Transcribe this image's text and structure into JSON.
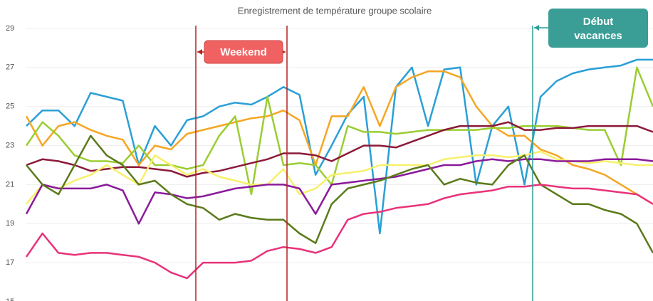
{
  "chart_data": {
    "type": "line",
    "title": "Enregistrement de température groupe scolaire",
    "annotations": {
      "weekend": "Weekend",
      "vacation": [
        "Début",
        "vacances"
      ]
    },
    "categories": [
      null,
      null,
      null,
      null,
      null,
      null,
      null,
      null,
      null,
      null,
      null,
      null,
      null,
      null,
      null,
      null,
      null,
      null,
      null,
      null,
      null,
      null,
      null,
      null,
      null,
      null,
      null,
      null,
      null,
      null,
      null,
      null,
      null,
      null,
      null,
      null,
      null,
      null,
      null,
      null
    ],
    "ylim": [
      15,
      29.3
    ],
    "yticks": [
      15,
      17,
      19,
      21,
      23,
      25,
      27,
      29
    ],
    "grid": true,
    "series": [
      {
        "color": "#2a9fd6",
        "values": [
          24,
          24.8,
          24.8,
          24,
          25.7,
          25.5,
          25.3,
          22,
          24,
          23,
          24.3,
          24.5,
          25,
          25.2,
          25.1,
          25.5,
          26,
          25.6,
          21.5,
          23,
          24.6,
          25.5,
          18.5,
          26,
          27,
          24,
          26.9,
          27,
          21,
          24,
          25,
          21,
          25.5,
          26.3,
          26.7,
          26.9,
          27,
          27.1,
          27.4,
          27.4
        ]
      },
      {
        "color": "#f5a623",
        "values": [
          24.5,
          23,
          24,
          24.2,
          23.8,
          23.5,
          23.3,
          22,
          23,
          22.8,
          23.6,
          23.8,
          24,
          24.2,
          24.4,
          24.5,
          24.8,
          24.3,
          22,
          24.5,
          24.5,
          26,
          24,
          26,
          26.5,
          26.8,
          26.8,
          26.5,
          25,
          24,
          23.5,
          23.5,
          22.8,
          22.5,
          22,
          21.8,
          21.5,
          21,
          20.5,
          20
        ]
      },
      {
        "color": "#9acd32",
        "values": [
          23,
          24.2,
          23.5,
          22.5,
          22.2,
          22.2,
          22.1,
          23,
          22,
          22,
          21.8,
          22,
          23.5,
          24.5,
          20.5,
          25.5,
          22,
          22.1,
          22,
          21,
          24,
          23.7,
          23.7,
          23.6,
          23.7,
          23.8,
          23.8,
          23.8,
          23.8,
          23.9,
          23.9,
          24,
          24,
          24,
          23.9,
          23.8,
          23.8,
          22,
          27,
          25
        ]
      },
      {
        "color": "#8b1a3a",
        "values": [
          22,
          22.3,
          22.2,
          22,
          21.7,
          21.8,
          21.9,
          21.9,
          21.8,
          21.7,
          21.4,
          21.6,
          21.7,
          21.9,
          22.1,
          22.3,
          22.6,
          22.6,
          22.5,
          22.2,
          22.6,
          23,
          23,
          22.9,
          23.2,
          23.5,
          23.8,
          24,
          24,
          24,
          24.2,
          23.8,
          23.8,
          23.9,
          23.9,
          24,
          24,
          24,
          24,
          23.7
        ]
      },
      {
        "color": "#f7f06a",
        "values": [
          20,
          21,
          20.8,
          21.2,
          21.5,
          22,
          21.5,
          21,
          22.5,
          22,
          21.5,
          21.8,
          21.4,
          21.2,
          21,
          21,
          21.8,
          20.5,
          20.8,
          21.5,
          21.6,
          21.7,
          22,
          22,
          22,
          22,
          22.3,
          22.4,
          22.5,
          22.5,
          22.4,
          22.5,
          22.7,
          22.3,
          22.2,
          22.1,
          22.2,
          22.1,
          22,
          22
        ]
      },
      {
        "color": "#8b1a9b",
        "values": [
          19.5,
          21,
          20.8,
          20.8,
          20.8,
          21,
          20.7,
          19,
          20.6,
          20.5,
          20.3,
          20.4,
          20.6,
          20.8,
          20.9,
          21,
          21,
          20.8,
          19.5,
          21,
          21.1,
          21.2,
          21.3,
          21.4,
          21.6,
          21.8,
          22,
          22,
          22.2,
          22.3,
          22.2,
          22.3,
          22.3,
          22.2,
          22.2,
          22.2,
          22.3,
          22.3,
          22.3,
          22.2
        ]
      },
      {
        "color": "#5a7a1a",
        "values": [
          22,
          21,
          20.5,
          22,
          23.5,
          22.5,
          22,
          21,
          21.2,
          20.5,
          20,
          19.8,
          19.2,
          19.5,
          19.3,
          19.2,
          19.2,
          18.5,
          18,
          20,
          20.8,
          21,
          21.2,
          21.5,
          21.8,
          22,
          21,
          21.3,
          21.1,
          21,
          22,
          22.5,
          21,
          20.5,
          20,
          20,
          19.7,
          19.5,
          19,
          17.5
        ]
      },
      {
        "color": "#e8327a",
        "values": [
          17.3,
          18.5,
          17.5,
          17.4,
          17.5,
          17.5,
          17.4,
          17.3,
          17,
          16.5,
          16.2,
          17,
          17,
          17,
          17.1,
          17.6,
          17.8,
          17.7,
          17.5,
          17.8,
          19.2,
          19.5,
          19.6,
          19.8,
          19.9,
          20,
          20.3,
          20.5,
          20.6,
          20.7,
          20.9,
          20.9,
          21,
          20.9,
          20.8,
          20.8,
          20.7,
          20.6,
          20.5,
          20
        ]
      }
    ]
  }
}
